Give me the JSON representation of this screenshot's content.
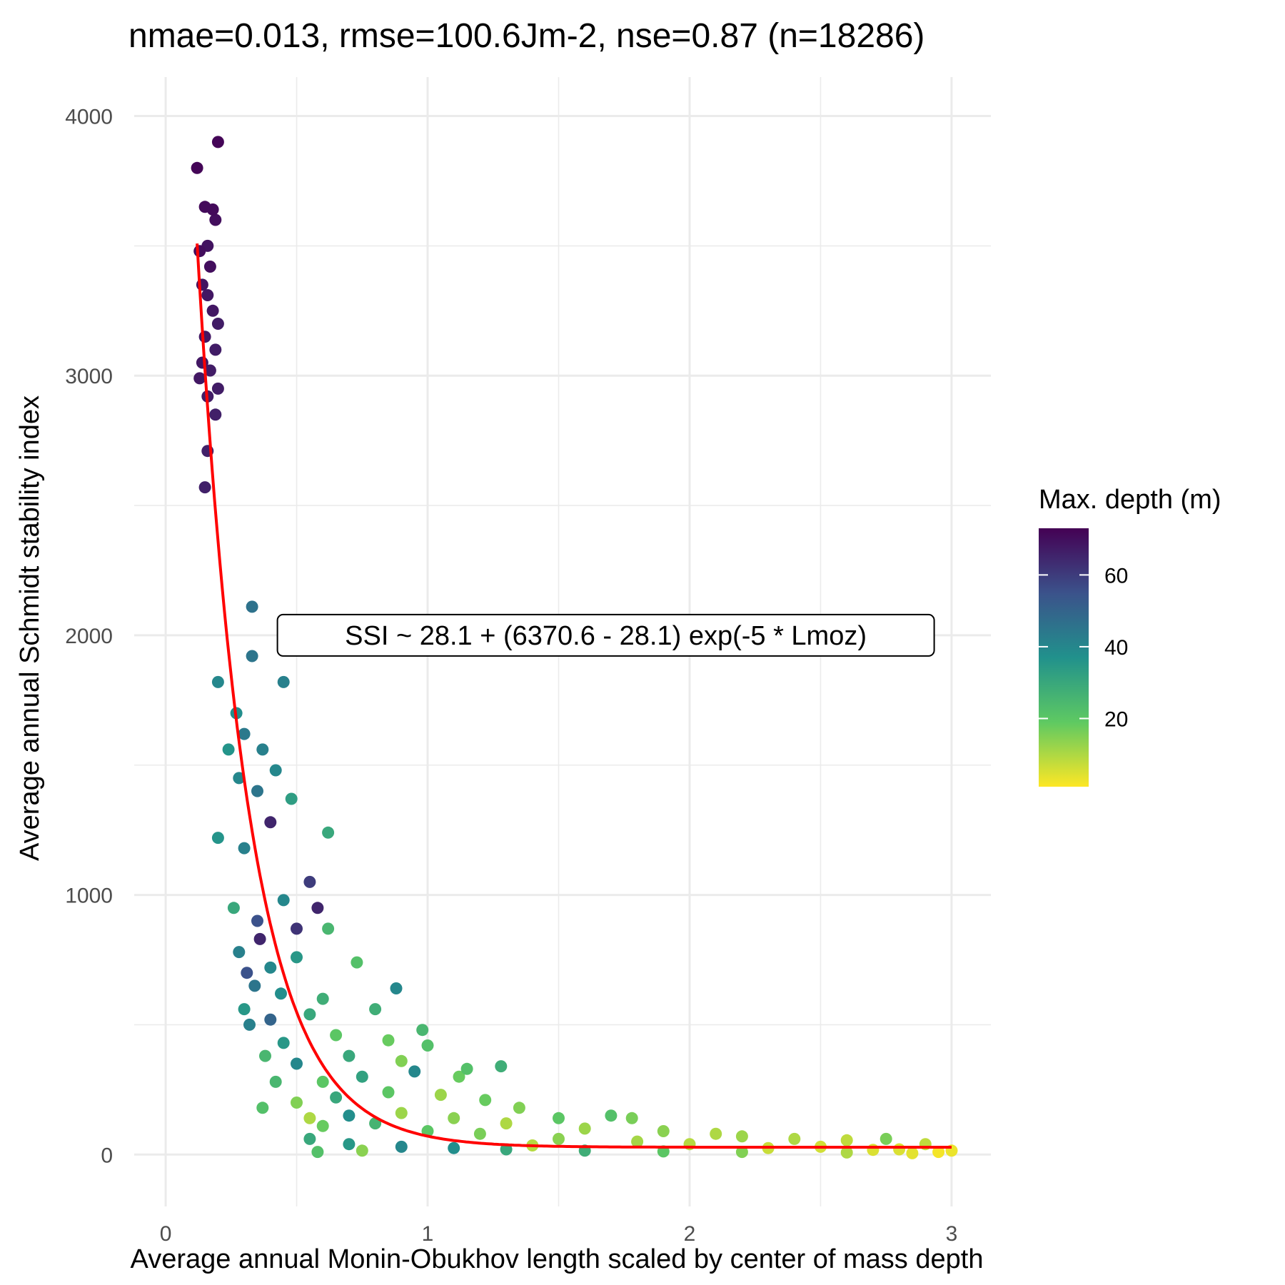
{
  "chart_data": {
    "type": "scatter",
    "title": "nmae=0.013, rmse=100.6Jm-2, nse=0.87 (n=18286)",
    "xlabel": "Average annual Monin-Obukhov length scaled by center of mass depth",
    "ylabel": "Average annual Schmidt stability index",
    "xlim": [
      -0.12,
      3.15
    ],
    "ylim": [
      -200,
      4150
    ],
    "x_ticks": [
      0,
      1,
      2,
      3
    ],
    "x_tick_labels": [
      "0",
      "1",
      "2",
      "3"
    ],
    "y_ticks": [
      0,
      1000,
      2000,
      3000,
      4000
    ],
    "y_tick_labels": [
      "0",
      "1000",
      "2000",
      "3000",
      "4000"
    ],
    "grid": true,
    "color_scale": {
      "title": "Max. depth (m)",
      "palette": "viridis (reversed: high = dark purple, low = yellow)",
      "range": [
        1,
        73
      ],
      "ticks": [
        20,
        40,
        60
      ],
      "tick_labels": [
        "20",
        "40",
        "60"
      ],
      "colors_low_to_high": [
        "#fde725",
        "#5ec962",
        "#21918c",
        "#3b528b",
        "#440154"
      ]
    },
    "legend_position": "right",
    "fit_line": {
      "label": "SSI ~ 28.1 + (6370.6 - 28.1) exp(-5 * Lmoz)",
      "asymptote": 28.1,
      "amplitude_start": 6370.6,
      "rate": 5,
      "x_range": [
        0.12,
        3.0
      ],
      "color": "#ff0000"
    },
    "annotation_anchor": {
      "x": 1.68,
      "y": 2000
    },
    "points": [
      [
        0.12,
        3800,
        72
      ],
      [
        0.2,
        3900,
        72
      ],
      [
        0.15,
        3650,
        71
      ],
      [
        0.18,
        3640,
        71
      ],
      [
        0.19,
        3600,
        70
      ],
      [
        0.13,
        3480,
        70
      ],
      [
        0.16,
        3500,
        69
      ],
      [
        0.17,
        3420,
        70
      ],
      [
        0.14,
        3350,
        69
      ],
      [
        0.16,
        3310,
        68
      ],
      [
        0.18,
        3250,
        68
      ],
      [
        0.2,
        3200,
        67
      ],
      [
        0.15,
        3150,
        68
      ],
      [
        0.19,
        3100,
        67
      ],
      [
        0.14,
        3050,
        68
      ],
      [
        0.17,
        3020,
        67
      ],
      [
        0.13,
        2990,
        68
      ],
      [
        0.2,
        2950,
        67
      ],
      [
        0.16,
        2920,
        67
      ],
      [
        0.19,
        2850,
        66
      ],
      [
        0.16,
        2710,
        66
      ],
      [
        0.15,
        2570,
        66
      ],
      [
        0.33,
        2110,
        46
      ],
      [
        0.33,
        1920,
        45
      ],
      [
        0.45,
        1820,
        42
      ],
      [
        0.2,
        1820,
        40
      ],
      [
        0.27,
        1700,
        38
      ],
      [
        0.3,
        1620,
        44
      ],
      [
        0.37,
        1560,
        42
      ],
      [
        0.42,
        1480,
        40
      ],
      [
        0.24,
        1560,
        36
      ],
      [
        0.28,
        1450,
        40
      ],
      [
        0.35,
        1400,
        45
      ],
      [
        0.48,
        1370,
        33
      ],
      [
        0.62,
        1240,
        30
      ],
      [
        0.2,
        1220,
        36
      ],
      [
        0.3,
        1180,
        42
      ],
      [
        0.4,
        1280,
        65
      ],
      [
        0.55,
        1050,
        60
      ],
      [
        0.58,
        950,
        65
      ],
      [
        0.26,
        950,
        30
      ],
      [
        0.35,
        900,
        55
      ],
      [
        0.45,
        980,
        40
      ],
      [
        0.5,
        870,
        62
      ],
      [
        0.62,
        870,
        25
      ],
      [
        0.28,
        780,
        42
      ],
      [
        0.36,
        830,
        65
      ],
      [
        0.4,
        720,
        40
      ],
      [
        0.5,
        760,
        35
      ],
      [
        0.73,
        740,
        22
      ],
      [
        0.31,
        700,
        55
      ],
      [
        0.34,
        650,
        45
      ],
      [
        0.44,
        620,
        38
      ],
      [
        0.6,
        600,
        28
      ],
      [
        0.88,
        640,
        40
      ],
      [
        0.3,
        560,
        35
      ],
      [
        0.32,
        500,
        42
      ],
      [
        0.4,
        520,
        50
      ],
      [
        0.55,
        540,
        30
      ],
      [
        0.8,
        560,
        28
      ],
      [
        0.98,
        480,
        25
      ],
      [
        1.0,
        420,
        22
      ],
      [
        0.85,
        440,
        18
      ],
      [
        0.65,
        460,
        20
      ],
      [
        0.45,
        430,
        35
      ],
      [
        0.38,
        380,
        25
      ],
      [
        0.5,
        350,
        40
      ],
      [
        0.7,
        380,
        30
      ],
      [
        0.9,
        360,
        15
      ],
      [
        1.15,
        330,
        22
      ],
      [
        1.28,
        340,
        28
      ],
      [
        1.12,
        300,
        18
      ],
      [
        0.95,
        320,
        40
      ],
      [
        0.75,
        300,
        32
      ],
      [
        0.6,
        280,
        20
      ],
      [
        0.42,
        280,
        25
      ],
      [
        0.37,
        180,
        22
      ],
      [
        0.5,
        200,
        15
      ],
      [
        0.65,
        220,
        30
      ],
      [
        0.85,
        240,
        20
      ],
      [
        1.05,
        230,
        12
      ],
      [
        1.22,
        210,
        18
      ],
      [
        1.35,
        180,
        15
      ],
      [
        1.5,
        140,
        20
      ],
      [
        0.55,
        140,
        10
      ],
      [
        0.7,
        150,
        38
      ],
      [
        0.9,
        160,
        12
      ],
      [
        1.1,
        140,
        14
      ],
      [
        1.3,
        120,
        10
      ],
      [
        1.7,
        150,
        22
      ],
      [
        1.78,
        140,
        16
      ],
      [
        1.6,
        100,
        12
      ],
      [
        1.9,
        90,
        14
      ],
      [
        2.1,
        80,
        10
      ],
      [
        2.2,
        70,
        12
      ],
      [
        2.4,
        60,
        10
      ],
      [
        2.6,
        55,
        8
      ],
      [
        2.75,
        60,
        16
      ],
      [
        2.9,
        40,
        8
      ],
      [
        3.0,
        15,
        3
      ],
      [
        2.95,
        10,
        2
      ],
      [
        2.8,
        20,
        5
      ],
      [
        2.5,
        30,
        6
      ],
      [
        2.0,
        40,
        9
      ],
      [
        1.8,
        50,
        11
      ],
      [
        1.5,
        60,
        14
      ],
      [
        1.2,
        80,
        16
      ],
      [
        1.0,
        90,
        20
      ],
      [
        0.8,
        120,
        26
      ],
      [
        0.6,
        110,
        18
      ],
      [
        0.55,
        60,
        30
      ],
      [
        0.7,
        40,
        35
      ],
      [
        0.9,
        30,
        40
      ],
      [
        1.1,
        25,
        38
      ],
      [
        1.3,
        20,
        30
      ],
      [
        1.6,
        15,
        28
      ],
      [
        1.9,
        12,
        20
      ],
      [
        2.2,
        10,
        15
      ],
      [
        2.6,
        8,
        10
      ],
      [
        2.85,
        5,
        4
      ],
      [
        0.58,
        10,
        22
      ],
      [
        0.75,
        15,
        14
      ],
      [
        1.4,
        35,
        9
      ],
      [
        2.3,
        25,
        7
      ],
      [
        2.7,
        18,
        5
      ]
    ]
  }
}
